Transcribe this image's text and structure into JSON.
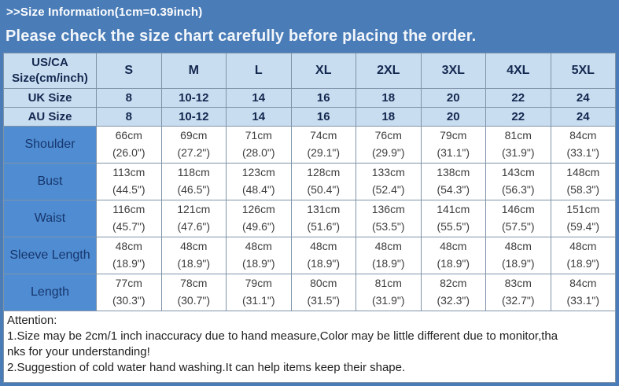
{
  "header": {
    "title": ">>Size Information(1cm=0.39inch)",
    "banner": "Please check the size chart carefully before placing the order."
  },
  "size_table": {
    "corner_label": {
      "line1": "US/CA",
      "line2": "Size(cm/inch)"
    },
    "sizes": [
      "S",
      "M",
      "L",
      "XL",
      "2XL",
      "3XL",
      "4XL",
      "5XL"
    ],
    "conversion_rows": [
      {
        "label": "UK Size",
        "values": [
          "8",
          "10-12",
          "14",
          "16",
          "18",
          "20",
          "22",
          "24"
        ]
      },
      {
        "label": "AU Size",
        "values": [
          "8",
          "10-12",
          "14",
          "16",
          "18",
          "20",
          "22",
          "24"
        ]
      }
    ],
    "measurement_rows": [
      {
        "label": "Shoulder",
        "cm": [
          "66cm",
          "69cm",
          "71cm",
          "74cm",
          "76cm",
          "79cm",
          "81cm",
          "84cm"
        ],
        "inch": [
          "(26.0\")",
          "(27.2\")",
          "(28.0\")",
          "(29.1\")",
          "(29.9\")",
          "(31.1\")",
          "(31.9\")",
          "(33.1\")"
        ]
      },
      {
        "label": "Bust",
        "cm": [
          "113cm",
          "118cm",
          "123cm",
          "128cm",
          "133cm",
          "138cm",
          "143cm",
          "148cm"
        ],
        "inch": [
          "(44.5\")",
          "(46.5\")",
          "(48.4\")",
          "(50.4\")",
          "(52.4\")",
          "(54.3\")",
          "(56.3\")",
          "(58.3\")"
        ]
      },
      {
        "label": "Waist",
        "cm": [
          "116cm",
          "121cm",
          "126cm",
          "131cm",
          "136cm",
          "141cm",
          "146cm",
          "151cm"
        ],
        "inch": [
          "(45.7\")",
          "(47.6\")",
          "(49.6\")",
          "(51.6\")",
          "(53.5\")",
          "(55.5\")",
          "(57.5\")",
          "(59.4\")"
        ]
      },
      {
        "label": "Sleeve Length",
        "cm": [
          "48cm",
          "48cm",
          "48cm",
          "48cm",
          "48cm",
          "48cm",
          "48cm",
          "48cm"
        ],
        "inch": [
          "(18.9\")",
          "(18.9\")",
          "(18.9\")",
          "(18.9\")",
          "(18.9\")",
          "(18.9\")",
          "(18.9\")",
          "(18.9\")"
        ]
      },
      {
        "label": "Length",
        "cm": [
          "77cm",
          "78cm",
          "79cm",
          "80cm",
          "81cm",
          "82cm",
          "83cm",
          "84cm"
        ],
        "inch": [
          "(30.3\")",
          "(30.7\")",
          "(31.1\")",
          "(31.5\")",
          "(31.9\")",
          "(32.3\")",
          "(32.7\")",
          "(33.1\")"
        ]
      }
    ]
  },
  "attention": {
    "heading": "Attention:",
    "lines": [
      "1.Size may be 2cm/1 inch inaccuracy due to hand measure,Color may be little different due to monitor,tha",
      "nks for your understanding!",
      "2.Suggestion of cold water hand washing.It can help items keep their shape."
    ]
  },
  "colors": {
    "background_blue": "#4a7cb8",
    "table_header_blue": "#c9ddf0",
    "row_label_blue": "#4f8cd1",
    "header_text": "#ffffff",
    "table_text_navy": "#13284f",
    "cell_text_gray": "#3c3c3c"
  }
}
